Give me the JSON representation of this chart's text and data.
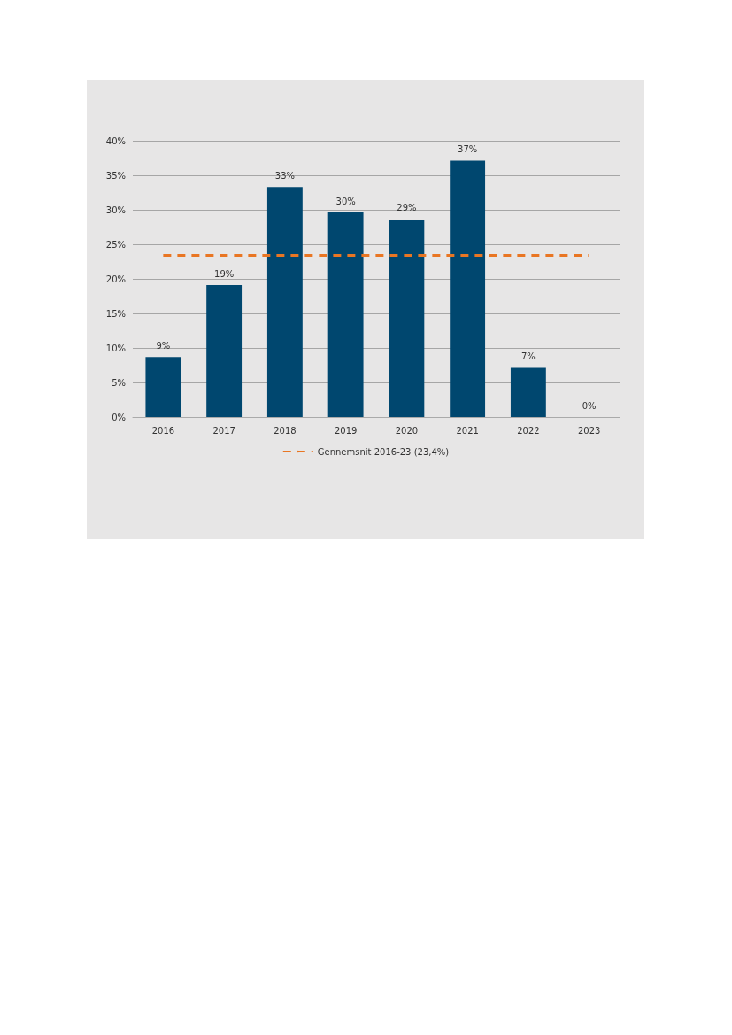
{
  "chart_data": {
    "type": "bar",
    "categories": [
      "2016",
      "2017",
      "2018",
      "2019",
      "2020",
      "2021",
      "2022",
      "2023"
    ],
    "series": [
      {
        "color": "#00476f",
        "values": [
          8.7,
          19.1,
          33.3,
          29.6,
          28.6,
          37.1,
          7.1,
          0
        ],
        "value_labels": [
          "9%",
          "19%",
          "33%",
          "30%",
          "29%",
          "37%",
          "7%",
          "0%"
        ]
      },
      {
        "type": "line",
        "name": "Gennemsnit 2016-23 (23,4%)",
        "color": "#e97623",
        "values": [
          23.4,
          23.4,
          23.4,
          23.4,
          23.4,
          23.4,
          23.4,
          23.4
        ],
        "line_style": "dashed"
      }
    ],
    "ylim": [
      0,
      40
    ],
    "yticks": [
      {
        "value": 0,
        "label": "0%"
      },
      {
        "value": 5,
        "label": "5%"
      },
      {
        "value": 10,
        "label": "10%"
      },
      {
        "value": 15,
        "label": "15%"
      },
      {
        "value": 20,
        "label": "20%"
      },
      {
        "value": 25,
        "label": "25%"
      },
      {
        "value": 30,
        "label": "30%"
      },
      {
        "value": 35,
        "label": "35%"
      },
      {
        "value": 40,
        "label": "40%"
      }
    ],
    "grid": "y",
    "legend": "bottom",
    "marker": "none"
  }
}
